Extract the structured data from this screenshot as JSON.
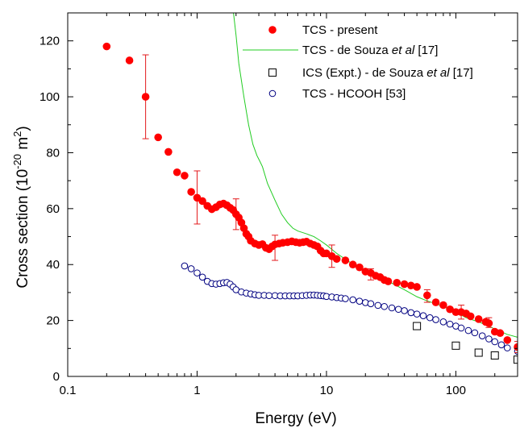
{
  "chart_data": {
    "type": "scatter",
    "xlabel": "Energy (eV)",
    "ylabel_prefix": "Cross section (10",
    "ylabel_sup1": "-20",
    "ylabel_mid": " m",
    "ylabel_sup2": "2",
    "ylabel_suffix": ")",
    "xscale": "log",
    "xlim": [
      0.1,
      300
    ],
    "ylim": [
      0,
      130
    ],
    "x_ticks": [
      0.1,
      1,
      10,
      100
    ],
    "x_tick_labels": [
      "0.1",
      "1",
      "10",
      "100"
    ],
    "y_ticks": [
      0,
      20,
      40,
      60,
      80,
      100,
      120
    ],
    "y_tick_labels": [
      "0",
      "20",
      "40",
      "60",
      "80",
      "100",
      "120"
    ],
    "legend_position": "top-right",
    "legend": [
      {
        "parts": [
          {
            "t": "TCS - present"
          }
        ]
      },
      {
        "parts": [
          {
            "t": "TCS - de Souza "
          },
          {
            "t": "et al",
            "i": true
          },
          {
            "t": " [17]"
          }
        ]
      },
      {
        "parts": [
          {
            "t": "ICS (Expt.)  - de Souza "
          },
          {
            "t": "et al",
            "i": true
          },
          {
            "t": " [17]"
          }
        ]
      },
      {
        "parts": [
          {
            "t": "TCS - HCOOH [53]"
          }
        ]
      }
    ],
    "series": [
      {
        "key": "tcs_present",
        "marker": "filled-circle",
        "color": "#ff0000",
        "x": [
          0.2,
          0.3,
          0.4,
          0.5,
          0.6,
          0.7,
          0.8,
          0.9,
          1.0,
          1.1,
          1.2,
          1.3,
          1.4,
          1.5,
          1.6,
          1.7,
          1.8,
          1.9,
          2.0,
          2.1,
          2.2,
          2.3,
          2.4,
          2.5,
          2.6,
          2.8,
          3.0,
          3.2,
          3.4,
          3.6,
          3.8,
          4.0,
          4.3,
          4.6,
          5.0,
          5.4,
          5.8,
          6.2,
          6.6,
          7.0,
          7.5,
          8.0,
          8.5,
          9.0,
          9.5,
          10.0,
          11,
          12,
          14,
          16,
          18,
          20,
          22,
          24,
          26,
          28,
          30,
          35,
          40,
          45,
          50,
          60,
          70,
          80,
          90,
          100,
          110,
          120,
          130,
          150,
          170,
          180,
          200,
          220,
          250,
          300
        ],
        "y": [
          118,
          113,
          100,
          85.5,
          80.3,
          73,
          71.8,
          66,
          63.9,
          62.7,
          61,
          59.8,
          60.5,
          61.5,
          61.8,
          61.2,
          60.3,
          59.5,
          58,
          56.8,
          55,
          53,
          51,
          50,
          48.5,
          47.5,
          47,
          47.3,
          46,
          45.5,
          46.5,
          47.2,
          47.5,
          47.8,
          48,
          48.3,
          48,
          47.8,
          48,
          48.2,
          47.5,
          47,
          46.5,
          45,
          44,
          44,
          43,
          42,
          41.5,
          40,
          39,
          37.5,
          37,
          36,
          35.5,
          34.5,
          34,
          33.5,
          33,
          32.5,
          32,
          29,
          26.5,
          25.5,
          24,
          23,
          23,
          22.5,
          21.5,
          20.5,
          19.5,
          19,
          16,
          15.5,
          13,
          10.5
        ]
      },
      {
        "key": "tcs_desouza",
        "marker": "line",
        "color": "#22cc22",
        "x": [
          1.9,
          2.0,
          2.1,
          2.3,
          2.5,
          2.7,
          2.9,
          3.05,
          3.2,
          3.5,
          4.0,
          4.5,
          5.0,
          5.5,
          6.0,
          7.0,
          8.0,
          9.0,
          10,
          12,
          15,
          20,
          30,
          40,
          50,
          60,
          70,
          80,
          100,
          120,
          150,
          200,
          250,
          300
        ],
        "y": [
          131,
          122,
          112,
          100,
          90,
          83,
          79,
          77,
          75,
          69,
          63,
          58,
          55,
          53,
          52,
          51,
          50,
          48.5,
          47,
          44,
          41,
          38,
          34,
          31,
          28.5,
          27,
          26,
          25,
          23,
          21,
          19.5,
          17,
          15,
          14
        ]
      },
      {
        "key": "ics_desouza",
        "marker": "open-square",
        "color": "#000000",
        "x": [
          50,
          100,
          150,
          200,
          300
        ],
        "y": [
          18,
          11,
          8.5,
          7.5,
          6
        ]
      },
      {
        "key": "tcs_hcooh",
        "marker": "open-circle",
        "color": "#000080",
        "x": [
          0.8,
          0.9,
          1.0,
          1.1,
          1.2,
          1.3,
          1.4,
          1.5,
          1.6,
          1.7,
          1.8,
          1.9,
          2.0,
          2.2,
          2.4,
          2.6,
          2.8,
          3.0,
          3.3,
          3.6,
          4.0,
          4.4,
          4.8,
          5.2,
          5.6,
          6.0,
          6.5,
          7.0,
          7.5,
          8.0,
          8.5,
          9.0,
          9.5,
          10,
          11,
          12,
          13,
          14,
          16,
          18,
          20,
          22,
          25,
          28,
          32,
          36,
          40,
          45,
          50,
          56,
          63,
          70,
          80,
          90,
          100,
          110,
          125,
          140,
          160,
          180,
          200,
          225,
          250,
          300
        ],
        "y": [
          39.5,
          38.5,
          37,
          35.5,
          34,
          33.2,
          33,
          33.2,
          33.5,
          33.6,
          33,
          32,
          31,
          30.2,
          29.8,
          29.5,
          29.2,
          29,
          29,
          28.9,
          28.9,
          28.8,
          28.8,
          28.8,
          28.8,
          28.8,
          28.9,
          29,
          29.1,
          29.1,
          29,
          28.9,
          28.8,
          28.6,
          28.4,
          28.2,
          28,
          27.8,
          27.4,
          26.9,
          26.4,
          26,
          25.4,
          25,
          24.5,
          24,
          23.5,
          22.8,
          22.3,
          21.7,
          21,
          20.3,
          19.5,
          18.7,
          18,
          17.3,
          16.4,
          15.6,
          14.5,
          13.4,
          12.4,
          11.3,
          10.2,
          9
        ]
      }
    ],
    "error_bars": [
      {
        "x": 0.4,
        "low": 85,
        "high": 115
      },
      {
        "x": 1.0,
        "low": 54.5,
        "high": 73.5
      },
      {
        "x": 2.0,
        "low": 52.5,
        "high": 63.5
      },
      {
        "x": 4.0,
        "low": 41.5,
        "high": 50.5
      },
      {
        "x": 11,
        "low": 39,
        "high": 47
      },
      {
        "x": 22,
        "low": 34.5,
        "high": 38.5
      },
      {
        "x": 60,
        "low": 26.5,
        "high": 31
      },
      {
        "x": 110,
        "low": 20.5,
        "high": 25.5
      },
      {
        "x": 180,
        "low": 17.5,
        "high": 21
      },
      {
        "x": 300,
        "low": 8.5,
        "high": 12.5
      }
    ]
  }
}
